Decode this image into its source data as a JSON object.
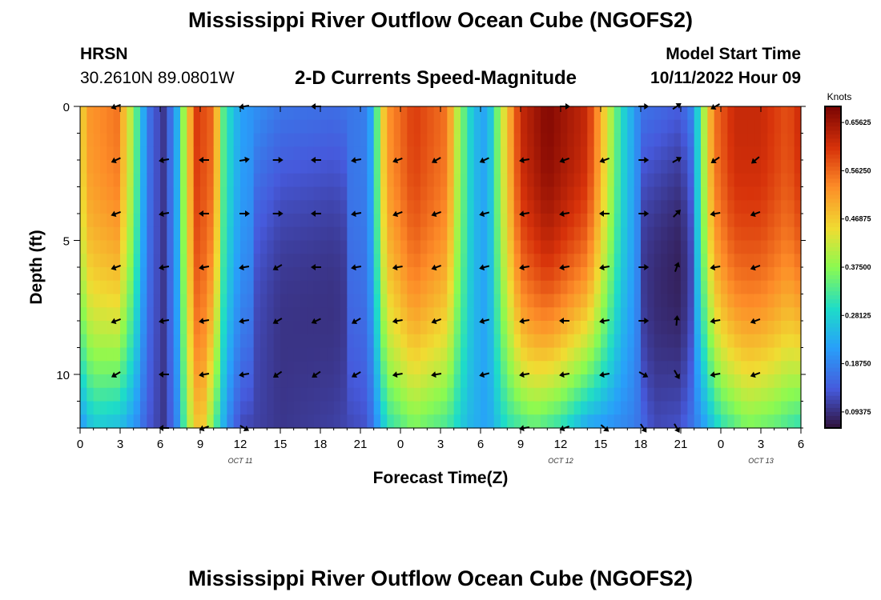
{
  "page_title": "Mississippi River Outflow Ocean Cube (NGOFS2)",
  "page_title_repeat": "Mississippi River Outflow Ocean Cube (NGOFS2)",
  "station": {
    "name": "HRSN",
    "coords": "30.2610N  89.0801W"
  },
  "model": {
    "label": "Model Start Time",
    "value": "10/11/2022 Hour 09"
  },
  "chart_data": {
    "type": "heatmap",
    "title": "2-D Currents Speed-Magnitude",
    "xlabel": "Forecast Time(Z)",
    "ylabel": "Depth (ft)",
    "x_range_hours": [
      0,
      54
    ],
    "ylim": [
      0,
      12
    ],
    "y_ticks": [
      0,
      5,
      10
    ],
    "x_tick_labels": [
      "0",
      "3",
      "6",
      "9",
      "12",
      "15",
      "18",
      "21",
      "0",
      "3",
      "6",
      "9",
      "12",
      "15",
      "18",
      "21",
      "0",
      "3",
      "6"
    ],
    "date_labels": [
      {
        "text": "OCT 11",
        "hour": 12
      },
      {
        "text": "OCT 12",
        "hour": 36
      },
      {
        "text": "OCT 13",
        "hour": 51
      }
    ],
    "colorbar": {
      "unit": "Knots",
      "min": 0.0625,
      "max": 0.6875,
      "labels": [
        "0.65625",
        "0.56250",
        "0.46875",
        "0.37500",
        "0.28125",
        "0.18750",
        "0.09375"
      ],
      "label_values": [
        0.65625,
        0.5625,
        0.46875,
        0.375,
        0.28125,
        0.1875,
        0.09375
      ]
    },
    "speed_profile_surface": [
      [
        0,
        0.45
      ],
      [
        0.7,
        0.52
      ],
      [
        2.8,
        0.55
      ],
      [
        4,
        0.38
      ],
      [
        5,
        0.18
      ],
      [
        5.5,
        0.14
      ],
      [
        6.3,
        0.1
      ],
      [
        7.2,
        0.22
      ],
      [
        7.8,
        0.4
      ],
      [
        8.7,
        0.6
      ],
      [
        10,
        0.56
      ],
      [
        10.8,
        0.32
      ],
      [
        12,
        0.22
      ],
      [
        15,
        0.17
      ],
      [
        19,
        0.16
      ],
      [
        21.5,
        0.18
      ],
      [
        22,
        0.26
      ],
      [
        22.5,
        0.42
      ],
      [
        23,
        0.52
      ],
      [
        25,
        0.6
      ],
      [
        27.5,
        0.55
      ],
      [
        28.3,
        0.4
      ],
      [
        29.5,
        0.25
      ],
      [
        30.5,
        0.22
      ],
      [
        31.5,
        0.4
      ],
      [
        33,
        0.62
      ],
      [
        35,
        0.68
      ],
      [
        38,
        0.62
      ],
      [
        39,
        0.5
      ],
      [
        40.5,
        0.3
      ],
      [
        41.5,
        0.22
      ],
      [
        42,
        0.17
      ],
      [
        45,
        0.14
      ],
      [
        46,
        0.2
      ],
      [
        46.5,
        0.35
      ],
      [
        47.5,
        0.55
      ],
      [
        49,
        0.62
      ],
      [
        51,
        0.62
      ],
      [
        53,
        0.58
      ],
      [
        54,
        0.62
      ]
    ],
    "speed_profile_bottom": [
      [
        0,
        0.2
      ],
      [
        1,
        0.27
      ],
      [
        3,
        0.25
      ],
      [
        4.2,
        0.2
      ],
      [
        5,
        0.14
      ],
      [
        6.3,
        0.1
      ],
      [
        7.2,
        0.18
      ],
      [
        8,
        0.38
      ],
      [
        9,
        0.5
      ],
      [
        10,
        0.35
      ],
      [
        11,
        0.2
      ],
      [
        12,
        0.12
      ],
      [
        15,
        0.1
      ],
      [
        19,
        0.11
      ],
      [
        21.5,
        0.13
      ],
      [
        22.2,
        0.2
      ],
      [
        23,
        0.3
      ],
      [
        25,
        0.36
      ],
      [
        27.5,
        0.32
      ],
      [
        29,
        0.25
      ],
      [
        30.5,
        0.22
      ],
      [
        32,
        0.3
      ],
      [
        34,
        0.34
      ],
      [
        36,
        0.3
      ],
      [
        38,
        0.22
      ],
      [
        41.5,
        0.18
      ],
      [
        43,
        0.12
      ],
      [
        45,
        0.13
      ],
      [
        46.5,
        0.2
      ],
      [
        48,
        0.3
      ],
      [
        50,
        0.36
      ],
      [
        52,
        0.34
      ],
      [
        54,
        0.3
      ]
    ],
    "arrow_rows_ft": [
      0,
      2,
      4,
      6,
      8,
      10,
      12
    ],
    "arrow_cols_hour": [
      2.7,
      6.3,
      9.3,
      12.3,
      14.8,
      17.7,
      20.7,
      23.8,
      26.7,
      30.3,
      33.3,
      36.3,
      39.3,
      42.2,
      44.7,
      47.6,
      50.6
    ],
    "arrow_angles_deg": [
      [
        200,
        null,
        null,
        190,
        null,
        180,
        null,
        null,
        null,
        null,
        null,
        0,
        null,
        0,
        35,
        210,
        null
      ],
      [
        205,
        190,
        180,
        10,
        0,
        180,
        190,
        200,
        210,
        205,
        190,
        200,
        200,
        0,
        30,
        215,
        220
      ],
      [
        200,
        190,
        180,
        0,
        0,
        180,
        190,
        200,
        200,
        195,
        190,
        190,
        180,
        0,
        45,
        190,
        200
      ],
      [
        200,
        190,
        190,
        190,
        210,
        180,
        190,
        190,
        200,
        195,
        190,
        190,
        190,
        0,
        70,
        190,
        200
      ],
      [
        200,
        190,
        190,
        190,
        210,
        205,
        210,
        190,
        200,
        195,
        190,
        180,
        190,
        0,
        85,
        190,
        200
      ],
      [
        210,
        180,
        190,
        190,
        215,
        215,
        210,
        190,
        190,
        195,
        190,
        190,
        190,
        330,
        300,
        190,
        200
      ],
      [
        null,
        180,
        200,
        330,
        null,
        null,
        null,
        null,
        null,
        null,
        190,
        200,
        320,
        305,
        300,
        null,
        null
      ]
    ]
  }
}
